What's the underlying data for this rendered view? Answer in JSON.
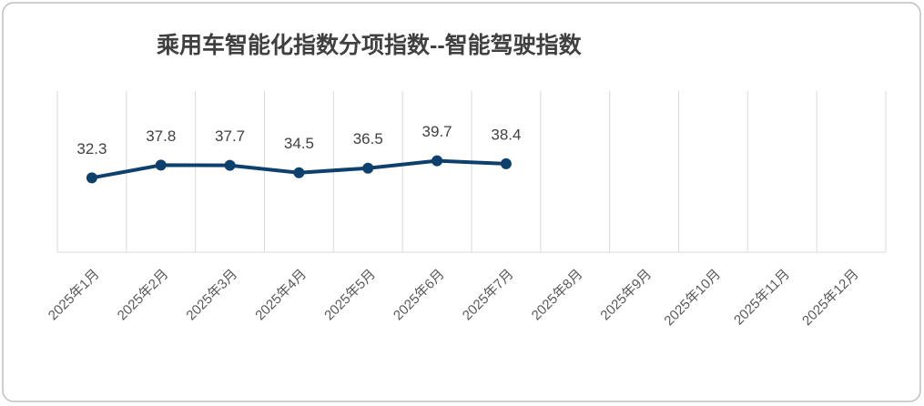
{
  "chart_data": {
    "type": "line",
    "title": "乘用车智能化指数分项指数--智能驾驶指数",
    "categories": [
      "2025年1月",
      "2025年2月",
      "2025年3月",
      "2025年4月",
      "2025年5月",
      "2025年6月",
      "2025年7月",
      "2025年8月",
      "2025年9月",
      "2025年10月",
      "2025年11月",
      "2025年12月"
    ],
    "values": [
      32.3,
      37.8,
      37.7,
      34.5,
      36.5,
      39.7,
      38.4,
      null,
      null,
      null,
      null,
      null
    ],
    "color": "#0e406e",
    "ylim": [
      0,
      70
    ],
    "grid": true
  }
}
